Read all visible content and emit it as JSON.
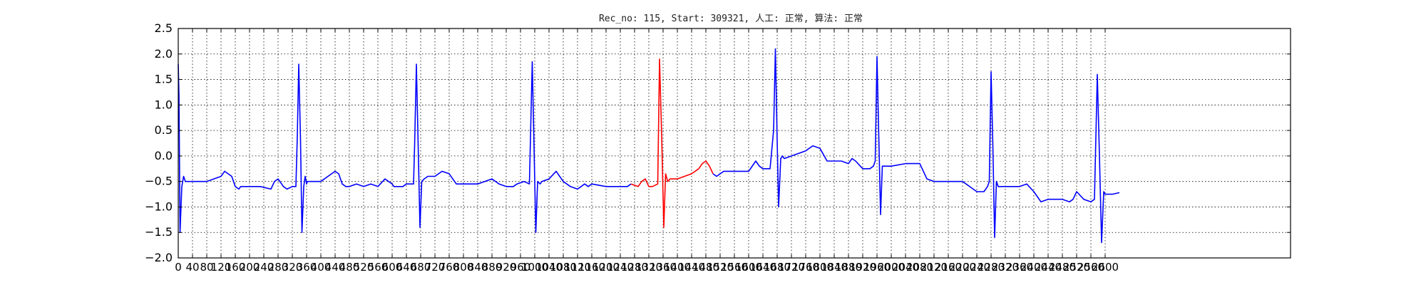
{
  "chart_data": {
    "type": "line",
    "title": "Rec_no: 115, Start: 309321, 人工: 正常, 算法: 正常",
    "xlabel": "",
    "ylabel": "",
    "xlim": [
      0,
      3120
    ],
    "ylim": [
      -2.0,
      2.5
    ],
    "grid": true,
    "grid_style": "dotted",
    "yticks": [
      -2.0,
      -1.5,
      -1.0,
      -0.5,
      0.0,
      0.5,
      1.0,
      1.5,
      2.0,
      2.5
    ],
    "ytick_labels": [
      "−2.0",
      "−1.5",
      "−1.0",
      "−0.5",
      "0.0",
      "0.5",
      "1.0",
      "1.5",
      "2.0",
      "2.5"
    ],
    "xticks": [
      0,
      40,
      80,
      120,
      160,
      200,
      240,
      280,
      320,
      360,
      400,
      440,
      480,
      520,
      560,
      600,
      640,
      680,
      720,
      760,
      800,
      840,
      880,
      920,
      960,
      1000,
      1040,
      1080,
      1120,
      1160,
      1200,
      1240,
      1280,
      1320,
      1360,
      1400,
      1440,
      1480,
      1520,
      1560,
      1600,
      1640,
      1680,
      1720,
      1760,
      1800,
      1840,
      1880,
      1920,
      1960,
      2000,
      2040,
      2080,
      2120,
      2160,
      2200,
      2240,
      2280,
      2320,
      2360,
      2400,
      2440,
      2480,
      2520,
      2560,
      2600
    ],
    "xtick_labels": [
      "0",
      "40",
      "80",
      "120",
      "160",
      "200",
      "240",
      "280",
      "320",
      "360",
      "400",
      "440",
      "480",
      "520",
      "560",
      "600",
      "640",
      "680",
      "720",
      "760",
      "800",
      "840",
      "880",
      "920",
      "960",
      "1000",
      "1040",
      "1080",
      "1120",
      "1160",
      "1200",
      "1240",
      "1280",
      "1320",
      "1360",
      "1400",
      "1440",
      "1480",
      "1520",
      "1560",
      "1600",
      "1640",
      "1680",
      "1720",
      "1760",
      "1800",
      "1840",
      "1880",
      "1920",
      "1960",
      "2000",
      "2040",
      "2080",
      "2120",
      "2160",
      "2200",
      "2240",
      "2280",
      "2320",
      "2360",
      "2400",
      "2440",
      "2480",
      "2520",
      "2560",
      "2600"
    ],
    "series": [
      {
        "color": "#0000ff",
        "x": [
          0,
          2,
          5,
          10,
          15,
          20,
          40,
          80,
          120,
          130,
          150,
          160,
          170,
          175,
          185,
          200,
          230,
          260,
          270,
          280,
          290,
          295,
          305,
          320,
          330,
          334,
          338,
          343,
          347,
          352,
          356,
          360,
          362,
          365,
          370,
          380,
          400,
          420,
          440,
          450,
          460,
          470,
          480,
          500,
          520,
          540,
          560,
          580,
          600,
          605,
          610,
          620,
          630,
          640,
          660,
          663,
          668,
          673,
          678,
          683,
          690,
          700,
          720,
          740,
          760,
          780,
          790,
          800,
          840,
          880,
          900,
          920,
          930,
          940,
          950,
          970,
          985,
          993,
          997,
          1003,
          1008,
          1015,
          1020,
          1040,
          1060,
          1080,
          1100,
          1120,
          1140,
          1150,
          1160,
          1200,
          1240,
          1260,
          1270
        ],
        "y": [
          1.8,
          1.2,
          -1.5,
          -0.6,
          -0.4,
          -0.5,
          -0.5,
          -0.5,
          -0.4,
          -0.3,
          -0.4,
          -0.6,
          -0.65,
          -0.6,
          -0.6,
          -0.6,
          -0.6,
          -0.65,
          -0.5,
          -0.45,
          -0.55,
          -0.6,
          -0.65,
          -0.6,
          -0.6,
          0.4,
          1.8,
          0.3,
          -1.5,
          -0.6,
          -0.4,
          -0.55,
          -0.5,
          -0.5,
          -0.5,
          -0.5,
          -0.5,
          -0.4,
          -0.3,
          -0.35,
          -0.55,
          -0.6,
          -0.6,
          -0.55,
          -0.6,
          -0.55,
          -0.6,
          -0.45,
          -0.55,
          -0.6,
          -0.6,
          -0.6,
          -0.6,
          -0.55,
          -0.55,
          0.2,
          1.8,
          0.2,
          -1.4,
          -0.5,
          -0.45,
          -0.4,
          -0.4,
          -0.3,
          -0.35,
          -0.55,
          -0.55,
          -0.55,
          -0.55,
          -0.45,
          -0.55,
          -0.6,
          -0.6,
          -0.6,
          -0.55,
          -0.5,
          -0.55,
          1.85,
          0.5,
          -1.5,
          -0.5,
          -0.55,
          -0.5,
          -0.45,
          -0.3,
          -0.5,
          -0.6,
          -0.65,
          -0.55,
          -0.6,
          -0.55,
          -0.6,
          -0.6,
          -0.6,
          -0.55
        ]
      },
      {
        "color": "#ff0000",
        "x": [
          1270,
          1290,
          1300,
          1310,
          1320,
          1330,
          1345,
          1350,
          1356,
          1362,
          1367,
          1373,
          1380,
          1400,
          1420,
          1440,
          1460,
          1470,
          1480,
          1490,
          1500
        ],
        "y": [
          -0.55,
          -0.6,
          -0.5,
          -0.45,
          -0.6,
          -0.6,
          -0.55,
          1.9,
          0.4,
          -1.4,
          -0.35,
          -0.5,
          -0.45,
          -0.45,
          -0.4,
          -0.35,
          -0.25,
          -0.15,
          -0.1,
          -0.2,
          -0.35
        ]
      },
      {
        "color": "#0000ff",
        "x": [
          1500,
          1510,
          1530,
          1560,
          1600,
          1620,
          1630,
          1640,
          1660,
          1670,
          1675,
          1680,
          1684,
          1690,
          1695,
          1700,
          1720,
          1760,
          1780,
          1800,
          1820,
          1830,
          1860,
          1880,
          1890,
          1900,
          1920,
          1940,
          1950,
          1955,
          1960,
          1965,
          1970,
          1975,
          1980,
          2000,
          2040,
          2080,
          2100,
          2120,
          2150,
          2180,
          2200,
          2230,
          2240,
          2260,
          2270,
          2275,
          2280,
          2285,
          2290,
          2295,
          2300,
          2320,
          2360,
          2380,
          2400,
          2420,
          2440,
          2480,
          2500,
          2510,
          2520,
          2540,
          2560,
          2570,
          2578,
          2584,
          2590,
          2596,
          2600,
          2620,
          2640
        ],
        "y": [
          -0.35,
          -0.4,
          -0.3,
          -0.3,
          -0.3,
          -0.1,
          -0.2,
          -0.25,
          -0.25,
          0.5,
          2.1,
          0.3,
          -1.0,
          -0.05,
          0.0,
          -0.05,
          -0.0,
          0.1,
          0.2,
          0.15,
          -0.1,
          -0.1,
          -0.1,
          -0.15,
          -0.05,
          -0.1,
          -0.25,
          -0.25,
          -0.2,
          -0.1,
          1.95,
          0.4,
          -1.15,
          -0.2,
          -0.2,
          -0.2,
          -0.15,
          -0.15,
          -0.45,
          -0.5,
          -0.5,
          -0.5,
          -0.5,
          -0.65,
          -0.7,
          -0.7,
          -0.6,
          -0.5,
          1.65,
          0.2,
          -1.6,
          -0.5,
          -0.6,
          -0.6,
          -0.6,
          -0.55,
          -0.7,
          -0.9,
          -0.85,
          -0.85,
          -0.9,
          -0.85,
          -0.7,
          -0.85,
          -0.9,
          -0.85,
          1.6,
          0.0,
          -1.7,
          -0.7,
          -0.75,
          -0.75,
          -0.72
        ]
      }
    ]
  }
}
